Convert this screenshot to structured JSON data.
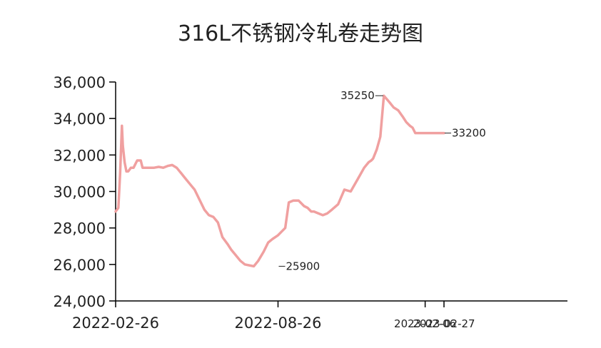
{
  "chart_data": {
    "type": "line",
    "title": "316L不锈钢冷轧卷走势图",
    "xlabel": "",
    "ylabel": "",
    "ylim": [
      24000,
      36000
    ],
    "yticks": [
      24000,
      26000,
      28000,
      30000,
      32000,
      34000,
      36000
    ],
    "ytick_labels": [
      "24,000",
      "26,000",
      "28,000",
      "30,000",
      "32,000",
      "34,000",
      "36,000"
    ],
    "xlim": [
      "2022-02-26",
      "2023-09-30"
    ],
    "xticks": [
      {
        "date": "2022-02-26",
        "label": "2022-02-26",
        "size": "large"
      },
      {
        "date": "2022-08-26",
        "label": "2022-08-26",
        "size": "large"
      },
      {
        "date": "2023-02-06",
        "label": "2023-02-06",
        "size": "small"
      },
      {
        "date": "2023-02-27",
        "label": "2023-02-27",
        "size": "small"
      }
    ],
    "grid": false,
    "series": [
      {
        "color": "#f0a0a0",
        "x": [
          "2022-02-26",
          "2022-03-01",
          "2022-03-03",
          "2022-03-05",
          "2022-03-06",
          "2022-03-08",
          "2022-03-10",
          "2022-03-12",
          "2022-03-15",
          "2022-03-18",
          "2022-03-22",
          "2022-03-26",
          "2022-03-28",
          "2022-03-30",
          "2022-04-02",
          "2022-04-06",
          "2022-04-10",
          "2022-04-15",
          "2022-04-20",
          "2022-04-25",
          "2022-04-30",
          "2022-05-05",
          "2022-05-10",
          "2022-05-15",
          "2022-05-20",
          "2022-05-25",
          "2022-06-01",
          "2022-06-05",
          "2022-06-10",
          "2022-06-15",
          "2022-06-20",
          "2022-06-25",
          "2022-07-01",
          "2022-07-05",
          "2022-07-10",
          "2022-07-15",
          "2022-07-20",
          "2022-07-25",
          "2022-07-30",
          "2022-08-04",
          "2022-08-10",
          "2022-08-15",
          "2022-08-20",
          "2022-08-26",
          "2022-08-30",
          "2022-09-03",
          "2022-09-07",
          "2022-09-12",
          "2022-09-18",
          "2022-09-24",
          "2022-09-28",
          "2022-10-02",
          "2022-10-05",
          "2022-10-10",
          "2022-10-15",
          "2022-10-20",
          "2022-10-25",
          "2022-11-01",
          "2022-11-08",
          "2022-11-15",
          "2022-11-22",
          "2022-11-30",
          "2022-12-05",
          "2022-12-08",
          "2022-12-10",
          "2022-12-14",
          "2022-12-18",
          "2022-12-22",
          "2022-12-28",
          "2023-01-02",
          "2023-01-07",
          "2023-01-12",
          "2023-01-16",
          "2023-01-20",
          "2023-01-23",
          "2023-01-26",
          "2023-01-30",
          "2023-02-02",
          "2023-02-04",
          "2023-02-06",
          "2023-02-08",
          "2023-02-10",
          "2023-02-14",
          "2023-02-18",
          "2023-02-22",
          "2023-02-27"
        ],
        "y": [
          28900,
          29100,
          31000,
          33600,
          32500,
          31600,
          31100,
          31100,
          31300,
          31300,
          31700,
          31700,
          31300,
          31300,
          31300,
          31300,
          31300,
          31350,
          31300,
          31400,
          31450,
          31300,
          31000,
          30700,
          30400,
          30100,
          29400,
          29000,
          28700,
          28600,
          28300,
          27500,
          27100,
          26800,
          26500,
          26200,
          26000,
          25950,
          25900,
          26200,
          26700,
          27200,
          27400,
          27600,
          27800,
          28000,
          29400,
          29500,
          29500,
          29200,
          29100,
          28900,
          28900,
          28800,
          28700,
          28800,
          29000,
          29300,
          30100,
          30000,
          30600,
          31300,
          31600,
          31700,
          31800,
          32300,
          33000,
          35250,
          34900,
          34600,
          34450,
          34100,
          33800,
          33600,
          33500,
          33200,
          33200,
          33200,
          33200,
          33200,
          33200,
          33200,
          33200,
          33200,
          33200,
          33200
        ]
      }
    ],
    "annotations": [
      {
        "x": "2022-08-26",
        "y": 25900,
        "text": "25900"
      },
      {
        "x": "2022-12-22",
        "y": 35250,
        "text": "35250"
      },
      {
        "x": "2023-02-27",
        "y": 33200,
        "text": "33200"
      }
    ]
  }
}
